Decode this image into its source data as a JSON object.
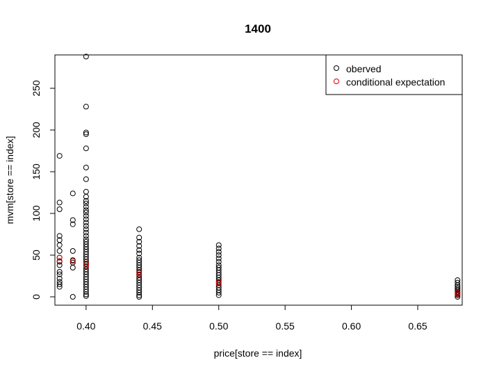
{
  "chart_data": {
    "type": "scatter",
    "title": "1400",
    "xlabel": "price[store == index]",
    "ylabel": "mvm[store == index]",
    "xlim": [
      0.3765,
      0.6835
    ],
    "ylim": [
      -10,
      290
    ],
    "x_ticks": [
      0.4,
      0.45,
      0.5,
      0.55,
      0.6,
      0.65
    ],
    "x_tick_labels": [
      "0.40",
      "0.45",
      "0.50",
      "0.55",
      "0.60",
      "0.65"
    ],
    "y_ticks": [
      0,
      50,
      100,
      150,
      200,
      250
    ],
    "y_tick_labels": [
      "0",
      "50",
      "100",
      "150",
      "200",
      "250"
    ],
    "grid": false,
    "legend_position": "top-right",
    "series": [
      {
        "name": "oberved",
        "color": "#000000",
        "marker": "open-circle",
        "points": [
          [
            0.38,
            169
          ],
          [
            0.38,
            113
          ],
          [
            0.38,
            105
          ],
          [
            0.38,
            73
          ],
          [
            0.38,
            68
          ],
          [
            0.38,
            62
          ],
          [
            0.38,
            55
          ],
          [
            0.38,
            47
          ],
          [
            0.38,
            42
          ],
          [
            0.38,
            38
          ],
          [
            0.38,
            30
          ],
          [
            0.38,
            27
          ],
          [
            0.38,
            22
          ],
          [
            0.38,
            18
          ],
          [
            0.38,
            15
          ],
          [
            0.38,
            12
          ],
          [
            0.39,
            124
          ],
          [
            0.39,
            92
          ],
          [
            0.39,
            87
          ],
          [
            0.39,
            55
          ],
          [
            0.39,
            44
          ],
          [
            0.39,
            41
          ],
          [
            0.39,
            35
          ],
          [
            0.39,
            0
          ],
          [
            0.4,
            288
          ],
          [
            0.4,
            228
          ],
          [
            0.4,
            197
          ],
          [
            0.4,
            195
          ],
          [
            0.4,
            178
          ],
          [
            0.4,
            155
          ],
          [
            0.4,
            141
          ],
          [
            0.4,
            126
          ],
          [
            0.4,
            120
          ],
          [
            0.4,
            115
          ],
          [
            0.4,
            112
          ],
          [
            0.4,
            108
          ],
          [
            0.4,
            104
          ],
          [
            0.4,
            101
          ],
          [
            0.4,
            97
          ],
          [
            0.4,
            93
          ],
          [
            0.4,
            89
          ],
          [
            0.4,
            85
          ],
          [
            0.4,
            81
          ],
          [
            0.4,
            77
          ],
          [
            0.4,
            73
          ],
          [
            0.4,
            69
          ],
          [
            0.4,
            66
          ],
          [
            0.4,
            63
          ],
          [
            0.4,
            60
          ],
          [
            0.4,
            57
          ],
          [
            0.4,
            54
          ],
          [
            0.4,
            51
          ],
          [
            0.4,
            48
          ],
          [
            0.4,
            45
          ],
          [
            0.4,
            42
          ],
          [
            0.4,
            39
          ],
          [
            0.4,
            36
          ],
          [
            0.4,
            33
          ],
          [
            0.4,
            30
          ],
          [
            0.4,
            27
          ],
          [
            0.4,
            24
          ],
          [
            0.4,
            21
          ],
          [
            0.4,
            18
          ],
          [
            0.4,
            15
          ],
          [
            0.4,
            12
          ],
          [
            0.4,
            9
          ],
          [
            0.4,
            6
          ],
          [
            0.4,
            3
          ],
          [
            0.4,
            1
          ],
          [
            0.44,
            81
          ],
          [
            0.44,
            71
          ],
          [
            0.44,
            66
          ],
          [
            0.44,
            61
          ],
          [
            0.44,
            56
          ],
          [
            0.44,
            52
          ],
          [
            0.44,
            47
          ],
          [
            0.44,
            44
          ],
          [
            0.44,
            41
          ],
          [
            0.44,
            38
          ],
          [
            0.44,
            35
          ],
          [
            0.44,
            32
          ],
          [
            0.44,
            29
          ],
          [
            0.44,
            26
          ],
          [
            0.44,
            23
          ],
          [
            0.44,
            20
          ],
          [
            0.44,
            17
          ],
          [
            0.44,
            14
          ],
          [
            0.44,
            11
          ],
          [
            0.44,
            8
          ],
          [
            0.44,
            5
          ],
          [
            0.44,
            2
          ],
          [
            0.44,
            0
          ],
          [
            0.5,
            62
          ],
          [
            0.5,
            58
          ],
          [
            0.5,
            54
          ],
          [
            0.5,
            50
          ],
          [
            0.5,
            46
          ],
          [
            0.5,
            42
          ],
          [
            0.5,
            38
          ],
          [
            0.5,
            35
          ],
          [
            0.5,
            32
          ],
          [
            0.5,
            29
          ],
          [
            0.5,
            26
          ],
          [
            0.5,
            23
          ],
          [
            0.5,
            20
          ],
          [
            0.5,
            17
          ],
          [
            0.5,
            14
          ],
          [
            0.5,
            11
          ],
          [
            0.5,
            8
          ],
          [
            0.5,
            5
          ],
          [
            0.5,
            2
          ],
          [
            0.68,
            20
          ],
          [
            0.68,
            17
          ],
          [
            0.68,
            14
          ],
          [
            0.68,
            12
          ],
          [
            0.68,
            10
          ],
          [
            0.68,
            8
          ],
          [
            0.68,
            6
          ],
          [
            0.68,
            4
          ],
          [
            0.68,
            2
          ],
          [
            0.68,
            0
          ]
        ]
      },
      {
        "name": "conditional expectation",
        "color": "#cc0000",
        "marker": "open-circle",
        "points": [
          [
            0.38,
            47
          ],
          [
            0.38,
            43
          ],
          [
            0.39,
            43
          ],
          [
            0.4,
            40
          ],
          [
            0.4,
            37
          ],
          [
            0.44,
            30
          ],
          [
            0.44,
            27
          ],
          [
            0.5,
            18
          ],
          [
            0.5,
            16
          ],
          [
            0.68,
            5
          ],
          [
            0.68,
            3
          ]
        ]
      }
    ]
  }
}
